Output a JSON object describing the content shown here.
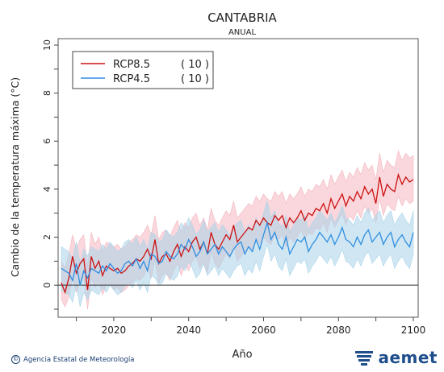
{
  "page": {
    "title": "CANTABRIA",
    "subtitle": "ANUAL",
    "footer_agency": "Agencia Estatal de Meteorología",
    "footer_copyright_symbol": "©",
    "brand_name": "aemet"
  },
  "colors": {
    "rcp85_line": "#cc1111",
    "rcp85_band": "#f4b6bf",
    "rcp45_line": "#2f8ee0",
    "rcp45_band": "#a9d4ea",
    "brand": "#1f4e8c"
  },
  "chart_data": {
    "type": "line",
    "title": "CANTABRIA",
    "subtitle": "ANUAL",
    "xlabel": "Año",
    "ylabel": "Cambio de la temperatura máxima (°C)",
    "xlim": [
      2006,
      2100
    ],
    "ylim": [
      -1,
      10
    ],
    "xticks": [
      2020,
      2040,
      2060,
      2080,
      2100
    ],
    "yticks": [
      0,
      2,
      4,
      6,
      8,
      10
    ],
    "reference_line": 0,
    "legend_position": "top-left",
    "x": [
      2006,
      2007,
      2008,
      2009,
      2010,
      2011,
      2012,
      2013,
      2014,
      2015,
      2016,
      2017,
      2018,
      2019,
      2020,
      2021,
      2022,
      2023,
      2024,
      2025,
      2026,
      2027,
      2028,
      2029,
      2030,
      2031,
      2032,
      2033,
      2034,
      2035,
      2036,
      2037,
      2038,
      2039,
      2040,
      2041,
      2042,
      2043,
      2044,
      2045,
      2046,
      2047,
      2048,
      2049,
      2050,
      2051,
      2052,
      2053,
      2054,
      2055,
      2056,
      2057,
      2058,
      2059,
      2060,
      2061,
      2062,
      2063,
      2064,
      2065,
      2066,
      2067,
      2068,
      2069,
      2070,
      2071,
      2072,
      2073,
      2074,
      2075,
      2076,
      2077,
      2078,
      2079,
      2080,
      2081,
      2082,
      2083,
      2084,
      2085,
      2086,
      2087,
      2088,
      2089,
      2090,
      2091,
      2092,
      2093,
      2094,
      2095,
      2096,
      2097,
      2098,
      2099,
      2100
    ],
    "series": [
      {
        "name": "RCP8.5",
        "count_label": "( 10 )",
        "color": "#cc1111",
        "values": [
          0.1,
          -0.3,
          0.3,
          1.2,
          0.5,
          0.9,
          1.1,
          -0.2,
          1.2,
          0.7,
          1.0,
          0.4,
          0.8,
          0.7,
          0.6,
          0.7,
          0.5,
          0.6,
          0.8,
          0.9,
          1.1,
          1.0,
          1.2,
          1.5,
          1.1,
          1.9,
          0.9,
          1.2,
          1.3,
          1.0,
          1.4,
          1.7,
          1.2,
          1.6,
          1.4,
          1.8,
          2.0,
          1.5,
          1.8,
          1.3,
          2.2,
          1.7,
          1.5,
          1.8,
          2.1,
          1.9,
          2.5,
          1.8,
          2.0,
          2.2,
          2.4,
          2.3,
          2.7,
          2.5,
          2.8,
          2.6,
          2.5,
          2.9,
          2.7,
          2.9,
          2.4,
          2.8,
          2.6,
          2.8,
          3.1,
          2.7,
          3.0,
          2.9,
          3.2,
          3.1,
          3.4,
          3.0,
          3.6,
          3.2,
          3.5,
          3.8,
          3.3,
          3.7,
          3.5,
          3.9,
          3.6,
          4.1,
          3.8,
          4.0,
          3.4,
          4.5,
          3.7,
          4.2,
          4.0,
          3.9,
          4.6,
          4.2,
          4.5,
          4.3,
          4.4
        ],
        "band_upper": [
          1.0,
          0.7,
          1.3,
          2.1,
          1.5,
          1.9,
          2.1,
          0.8,
          2.2,
          1.7,
          2.0,
          1.4,
          1.8,
          1.7,
          1.6,
          1.7,
          1.5,
          1.6,
          1.8,
          1.9,
          2.1,
          2.0,
          2.2,
          2.5,
          2.1,
          2.9,
          1.9,
          2.2,
          2.3,
          2.0,
          2.4,
          2.7,
          2.2,
          2.6,
          2.4,
          2.8,
          3.0,
          2.5,
          2.8,
          2.3,
          3.2,
          2.7,
          2.5,
          2.8,
          3.1,
          2.9,
          3.5,
          2.8,
          3.0,
          3.2,
          3.4,
          3.3,
          3.7,
          3.5,
          3.8,
          3.6,
          3.5,
          3.9,
          3.7,
          3.9,
          3.4,
          3.8,
          3.6,
          3.8,
          4.1,
          3.7,
          4.0,
          3.9,
          4.2,
          4.1,
          4.4,
          4.0,
          4.6,
          4.2,
          4.5,
          4.8,
          4.3,
          4.7,
          4.5,
          4.9,
          4.6,
          5.1,
          4.8,
          5.0,
          4.4,
          5.5,
          4.7,
          5.2,
          5.0,
          4.9,
          5.6,
          5.2,
          5.5,
          5.3,
          5.4
        ],
        "band_lower": [
          -0.6,
          -0.9,
          -0.5,
          0.3,
          -0.3,
          0.1,
          0.3,
          -1.0,
          0.3,
          -0.1,
          0.2,
          -0.4,
          0.0,
          0.0,
          -0.2,
          -0.1,
          -0.3,
          -0.2,
          0.0,
          0.1,
          0.3,
          0.2,
          0.4,
          0.7,
          0.3,
          1.1,
          0.1,
          0.4,
          0.5,
          0.2,
          0.6,
          0.9,
          0.4,
          0.8,
          0.6,
          1.0,
          1.2,
          0.7,
          1.0,
          0.5,
          1.4,
          0.9,
          0.7,
          1.0,
          1.3,
          1.1,
          1.7,
          1.0,
          1.2,
          1.4,
          1.6,
          1.5,
          1.9,
          1.7,
          2.0,
          1.8,
          1.7,
          2.1,
          1.9,
          2.1,
          1.6,
          2.0,
          1.8,
          2.0,
          2.3,
          1.9,
          2.2,
          2.1,
          2.4,
          2.3,
          2.6,
          2.2,
          2.8,
          2.4,
          2.7,
          3.0,
          2.5,
          2.9,
          2.7,
          3.1,
          2.8,
          3.3,
          3.0,
          3.2,
          2.6,
          3.6,
          2.9,
          3.4,
          3.2,
          3.1,
          3.7,
          3.3,
          3.6,
          3.4,
          3.5
        ]
      },
      {
        "name": "RCP4.5",
        "count_label": "( 10 )",
        "color": "#2f8ee0",
        "values": [
          0.7,
          0.6,
          0.5,
          0.2,
          0.9,
          0.0,
          0.6,
          0.3,
          0.7,
          0.6,
          0.5,
          0.8,
          0.6,
          0.9,
          0.7,
          0.5,
          0.6,
          0.9,
          1.0,
          0.8,
          1.1,
          0.7,
          1.0,
          0.6,
          1.3,
          1.2,
          0.9,
          1.0,
          1.4,
          1.2,
          1.1,
          1.3,
          1.7,
          1.5,
          1.9,
          1.6,
          1.2,
          1.4,
          1.8,
          1.3,
          1.5,
          1.7,
          1.3,
          1.6,
          1.4,
          1.2,
          1.5,
          1.7,
          1.8,
          1.3,
          1.6,
          1.4,
          1.9,
          1.5,
          2.1,
          2.6,
          1.9,
          2.2,
          1.7,
          1.5,
          2.0,
          1.3,
          1.6,
          1.9,
          1.8,
          2.0,
          1.4,
          1.7,
          1.9,
          2.2,
          2.0,
          1.8,
          2.1,
          1.7,
          2.0,
          2.4,
          1.9,
          1.8,
          1.6,
          2.0,
          1.7,
          2.1,
          2.3,
          1.8,
          2.0,
          2.2,
          1.7,
          2.0,
          2.2,
          1.6,
          1.9,
          2.1,
          1.8,
          1.6,
          2.2
        ],
        "band_upper": [
          1.6,
          1.5,
          1.4,
          1.1,
          1.8,
          0.9,
          1.5,
          1.2,
          1.6,
          1.5,
          1.4,
          1.7,
          1.5,
          1.8,
          1.6,
          1.4,
          1.5,
          1.8,
          1.9,
          1.7,
          2.0,
          1.6,
          1.9,
          1.5,
          2.2,
          2.1,
          1.8,
          1.9,
          2.3,
          2.1,
          2.0,
          2.2,
          2.6,
          2.4,
          2.8,
          2.5,
          2.1,
          2.3,
          2.7,
          2.2,
          2.4,
          2.6,
          2.2,
          2.5,
          2.3,
          2.1,
          2.4,
          2.6,
          2.7,
          2.2,
          2.5,
          2.3,
          2.8,
          2.4,
          3.0,
          3.5,
          2.8,
          3.1,
          2.6,
          2.4,
          2.9,
          2.2,
          2.5,
          2.8,
          2.7,
          2.9,
          2.3,
          2.6,
          2.8,
          3.1,
          2.9,
          2.7,
          3.0,
          2.6,
          2.9,
          3.3,
          2.8,
          2.7,
          2.5,
          2.9,
          2.6,
          3.0,
          3.2,
          2.7,
          2.9,
          3.1,
          2.6,
          2.9,
          3.1,
          2.5,
          2.8,
          3.0,
          2.7,
          2.5,
          3.1
        ],
        "band_lower": [
          -0.2,
          -0.3,
          -0.4,
          -0.7,
          0.0,
          -0.9,
          -0.3,
          -0.6,
          -0.2,
          -0.3,
          -0.4,
          -0.1,
          -0.3,
          0.0,
          -0.2,
          -0.4,
          -0.3,
          0.0,
          0.1,
          -0.1,
          0.2,
          -0.2,
          0.1,
          -0.3,
          0.4,
          0.3,
          0.0,
          0.1,
          0.5,
          0.3,
          0.2,
          0.4,
          0.8,
          0.6,
          1.0,
          0.7,
          0.3,
          0.5,
          0.9,
          0.4,
          0.6,
          0.8,
          0.4,
          0.7,
          0.5,
          0.3,
          0.6,
          0.8,
          0.9,
          0.4,
          0.7,
          0.5,
          1.0,
          0.6,
          1.2,
          1.7,
          1.0,
          1.3,
          0.8,
          0.6,
          1.1,
          0.4,
          0.7,
          1.0,
          0.9,
          1.1,
          0.5,
          0.8,
          1.0,
          1.3,
          1.1,
          0.9,
          1.2,
          0.8,
          1.1,
          1.5,
          1.0,
          0.9,
          0.7,
          1.1,
          0.8,
          1.2,
          1.4,
          0.9,
          1.1,
          1.3,
          0.8,
          1.1,
          1.3,
          0.7,
          1.0,
          1.2,
          0.9,
          0.7,
          1.3
        ]
      }
    ]
  }
}
